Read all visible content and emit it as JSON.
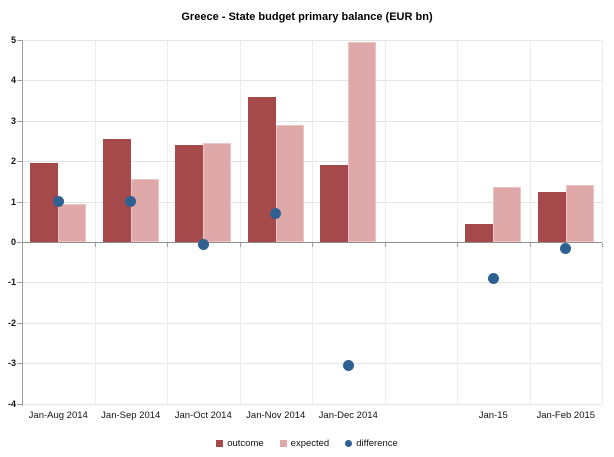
{
  "title": "Greece - State budget primary balance (EUR bn)",
  "chart_data": {
    "type": "bar",
    "subtype": "grouped-bar-with-scatter-overlay",
    "title": "Greece - State budget primary balance (EUR bn)",
    "categories": [
      "Jan-Aug 2014",
      "Jan-Sep 2014",
      "Jan-Oct 2014",
      "Jan-Nov 2014",
      "Jan-Dec 2014",
      "",
      "Jan-15",
      "Jan-Feb 2015"
    ],
    "series": [
      {
        "name": "outcome",
        "type": "bar",
        "color": "#A5494A",
        "values": [
          1.95,
          2.55,
          2.4,
          3.6,
          1.9,
          null,
          0.45,
          1.25
        ]
      },
      {
        "name": "expected",
        "type": "bar",
        "color": "#DFA9A9",
        "values": [
          0.95,
          1.55,
          2.45,
          2.9,
          4.95,
          null,
          1.35,
          1.4
        ]
      },
      {
        "name": "difference",
        "type": "scatter",
        "color": "#2E6191",
        "values": [
          1.0,
          1.0,
          -0.05,
          0.7,
          -3.05,
          null,
          -0.9,
          -0.15
        ]
      }
    ],
    "ylabel": "",
    "xlabel": "",
    "ylim": [
      -4,
      5
    ],
    "yticks": [
      5,
      4,
      3,
      2,
      1,
      0,
      -1,
      -2,
      -3,
      -4
    ],
    "grid": true,
    "legend_position": "bottom"
  },
  "colors": {
    "outcome": "#A5494A",
    "expected": "#DFA9A9",
    "difference": "#2E6191",
    "gridline": "#E4E4E4",
    "axis": "#A0A0A0",
    "zero_line": "#8F8F8F"
  }
}
